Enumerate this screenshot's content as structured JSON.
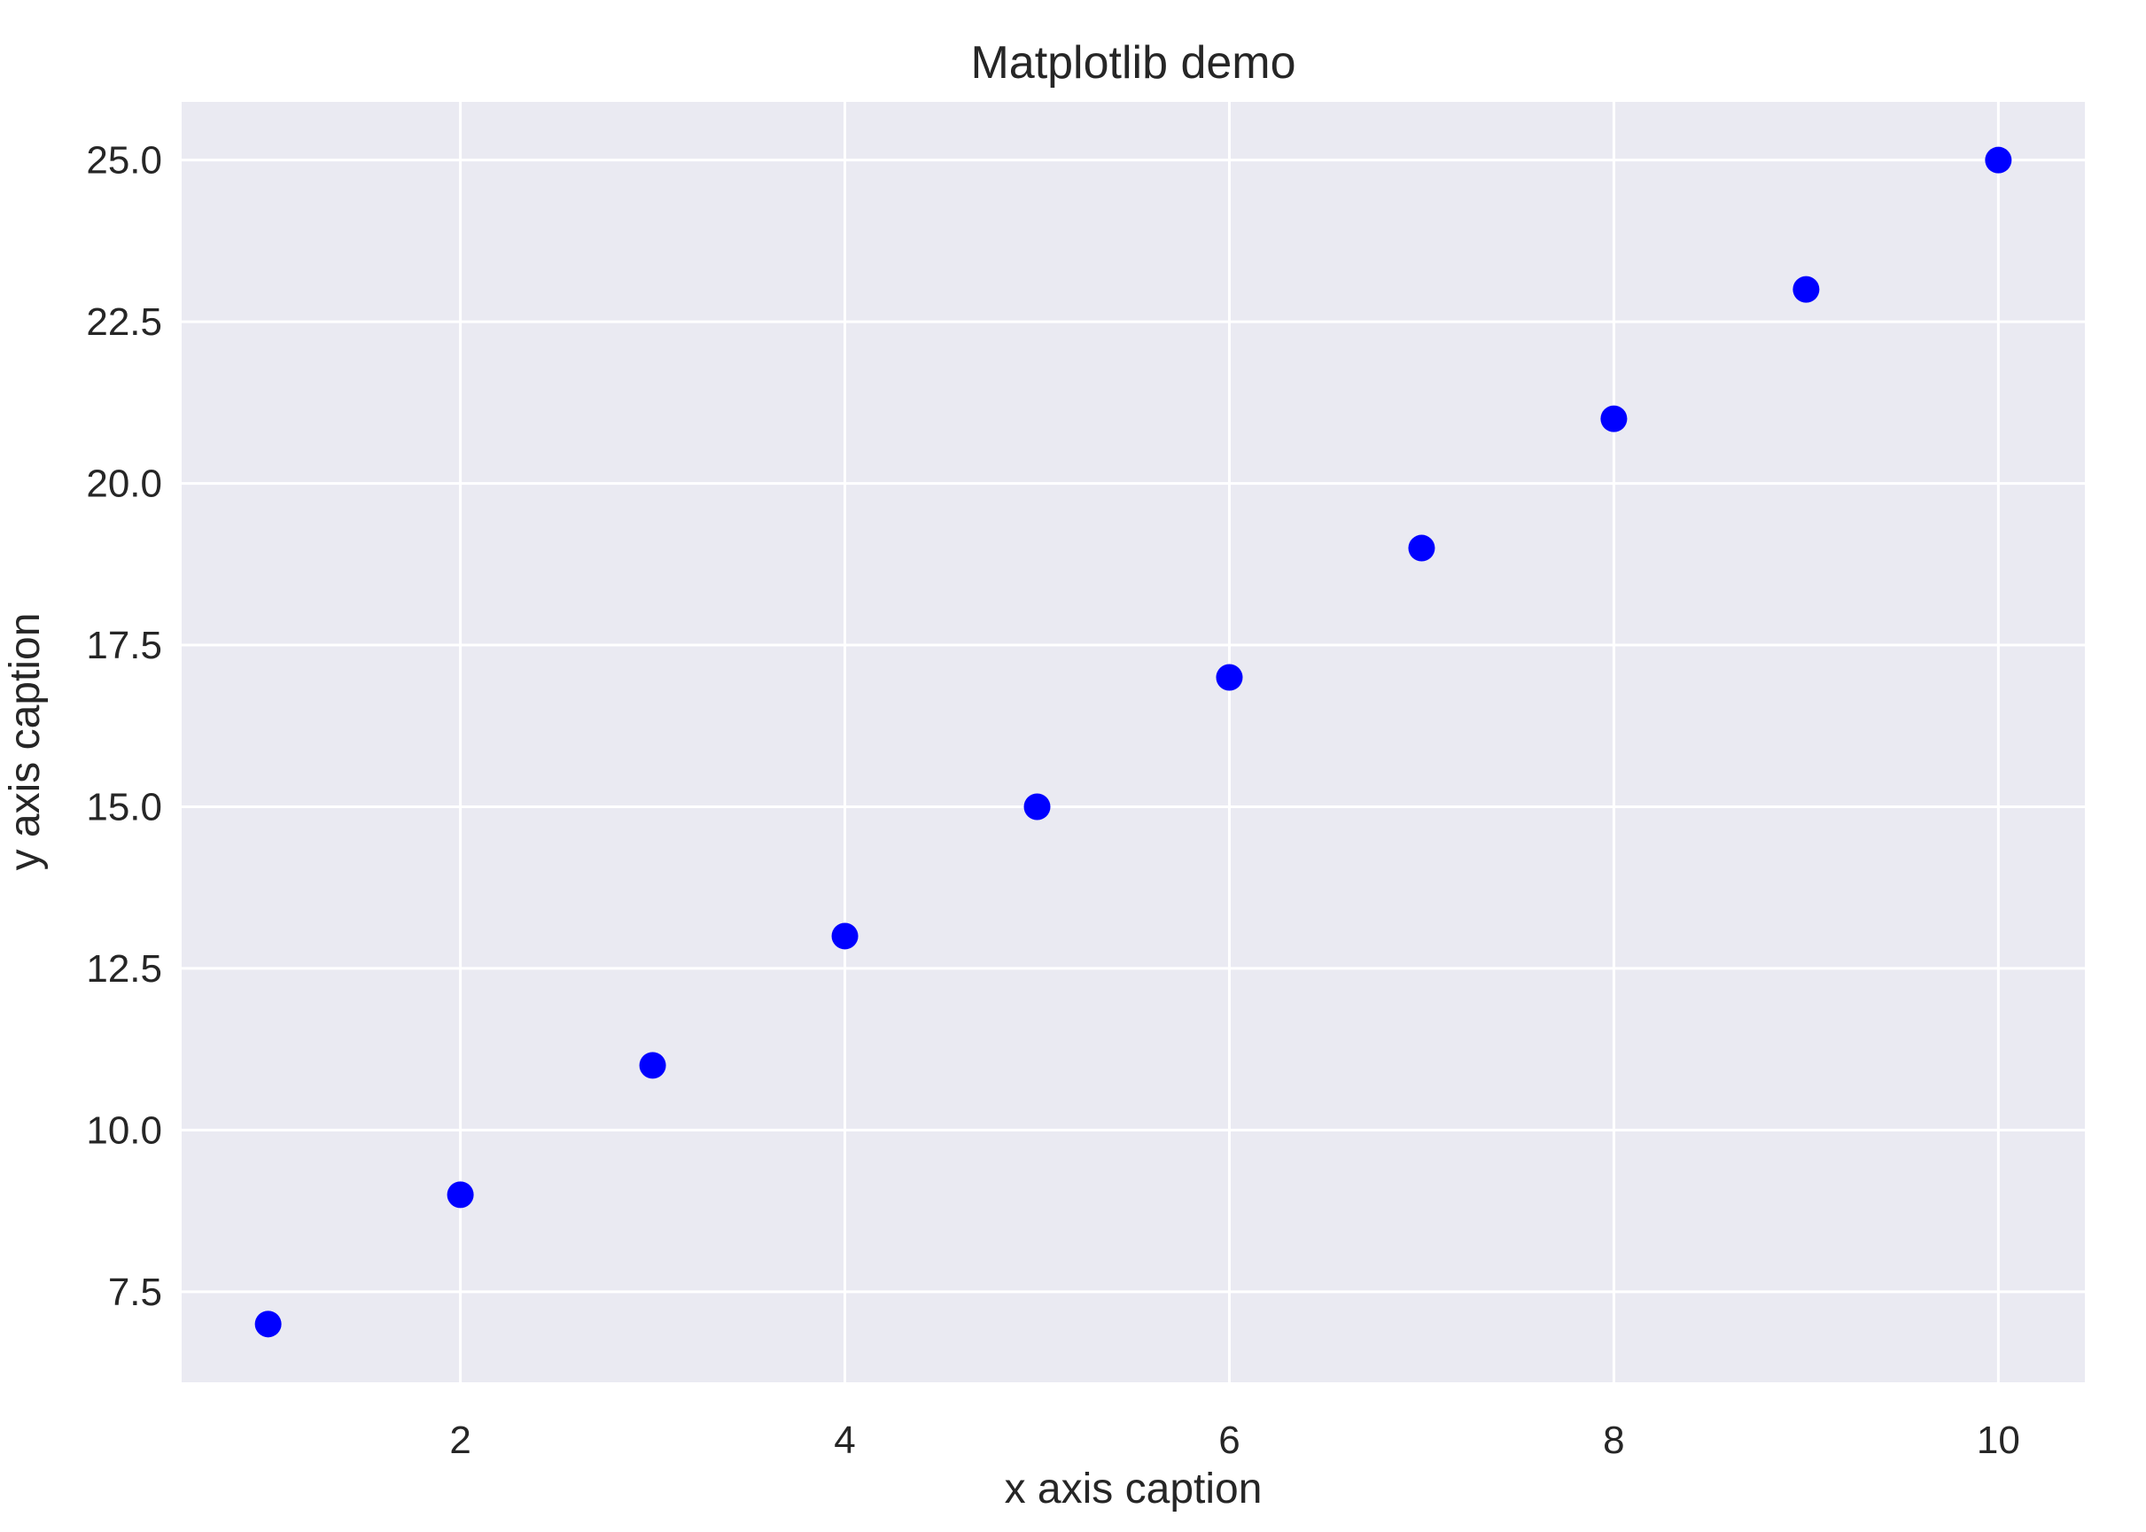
{
  "chart_data": {
    "type": "scatter",
    "title": "Matplotlib demo",
    "xlabel": "x axis caption",
    "ylabel": "y axis caption",
    "x": [
      1,
      2,
      3,
      4,
      5,
      6,
      7,
      8,
      9,
      10
    ],
    "y": [
      7,
      9,
      11,
      13,
      15,
      17,
      19,
      21,
      23,
      25
    ],
    "xlim": [
      0.55,
      10.45
    ],
    "ylim": [
      6.1,
      25.9
    ],
    "xticks": [
      2,
      4,
      6,
      8,
      10
    ],
    "xtick_labels": [
      "2",
      "4",
      "6",
      "8",
      "10"
    ],
    "yticks": [
      7.5,
      10.0,
      12.5,
      15.0,
      17.5,
      20.0,
      22.5,
      25.0
    ],
    "ytick_labels": [
      "7.5",
      "10.0",
      "12.5",
      "15.0",
      "17.5",
      "20.0",
      "22.5",
      "25.0"
    ],
    "grid": true,
    "colors": {
      "marker": "#0000ff",
      "plot_background": "#eaeaf2",
      "grid": "#ffffff",
      "text": "#262626"
    }
  }
}
